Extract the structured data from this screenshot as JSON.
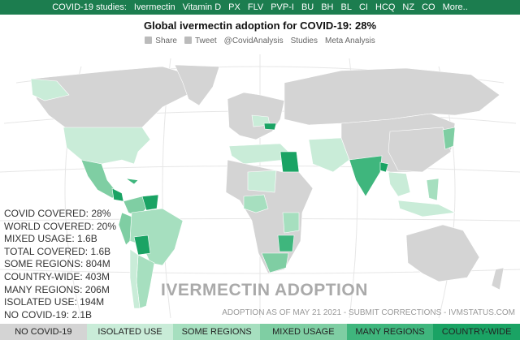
{
  "nav": {
    "label": "COVID-19 studies:",
    "links": [
      "Ivermectin",
      "Vitamin D",
      "PX",
      "FLV",
      "PVP-I",
      "BU",
      "BH",
      "BL",
      "CI",
      "HCQ",
      "NZ",
      "CO",
      "More.."
    ]
  },
  "title": "Global ivermectin adoption for COVID-19: 28%",
  "share_links": [
    "Share",
    "Tweet",
    "@CovidAnalysis",
    "Studies",
    "Meta Analysis"
  ],
  "stats": [
    "COVID COVERED: 28%",
    "WORLD COVERED: 20%",
    "MIXED USAGE: 1.6B",
    "TOTAL COVERED: 1.6B",
    "SOME REGIONS: 804M",
    "COUNTRY-WIDE: 403M",
    "MANY REGIONS: 206M",
    "ISOLATED USE: 194M",
    "NO COVID-19: 2.1B"
  ],
  "map_title": "IVERMECTIN ADOPTION",
  "footnote": "ADOPTION AS OF MAY 21 2021 - SUBMIT CORRECTIONS - IVMSTATUS.COM",
  "legend": [
    {
      "label": "NO COVID-19",
      "color": "#d4d4d4"
    },
    {
      "label": "ISOLATED USE",
      "color": "#c9ecd8"
    },
    {
      "label": "SOME REGIONS",
      "color": "#a6dfbf"
    },
    {
      "label": "MIXED USAGE",
      "color": "#7fcea3"
    },
    {
      "label": "MANY REGIONS",
      "color": "#3fb67d"
    },
    {
      "label": "COUNTRY-WIDE",
      "color": "#1aa364"
    }
  ]
}
